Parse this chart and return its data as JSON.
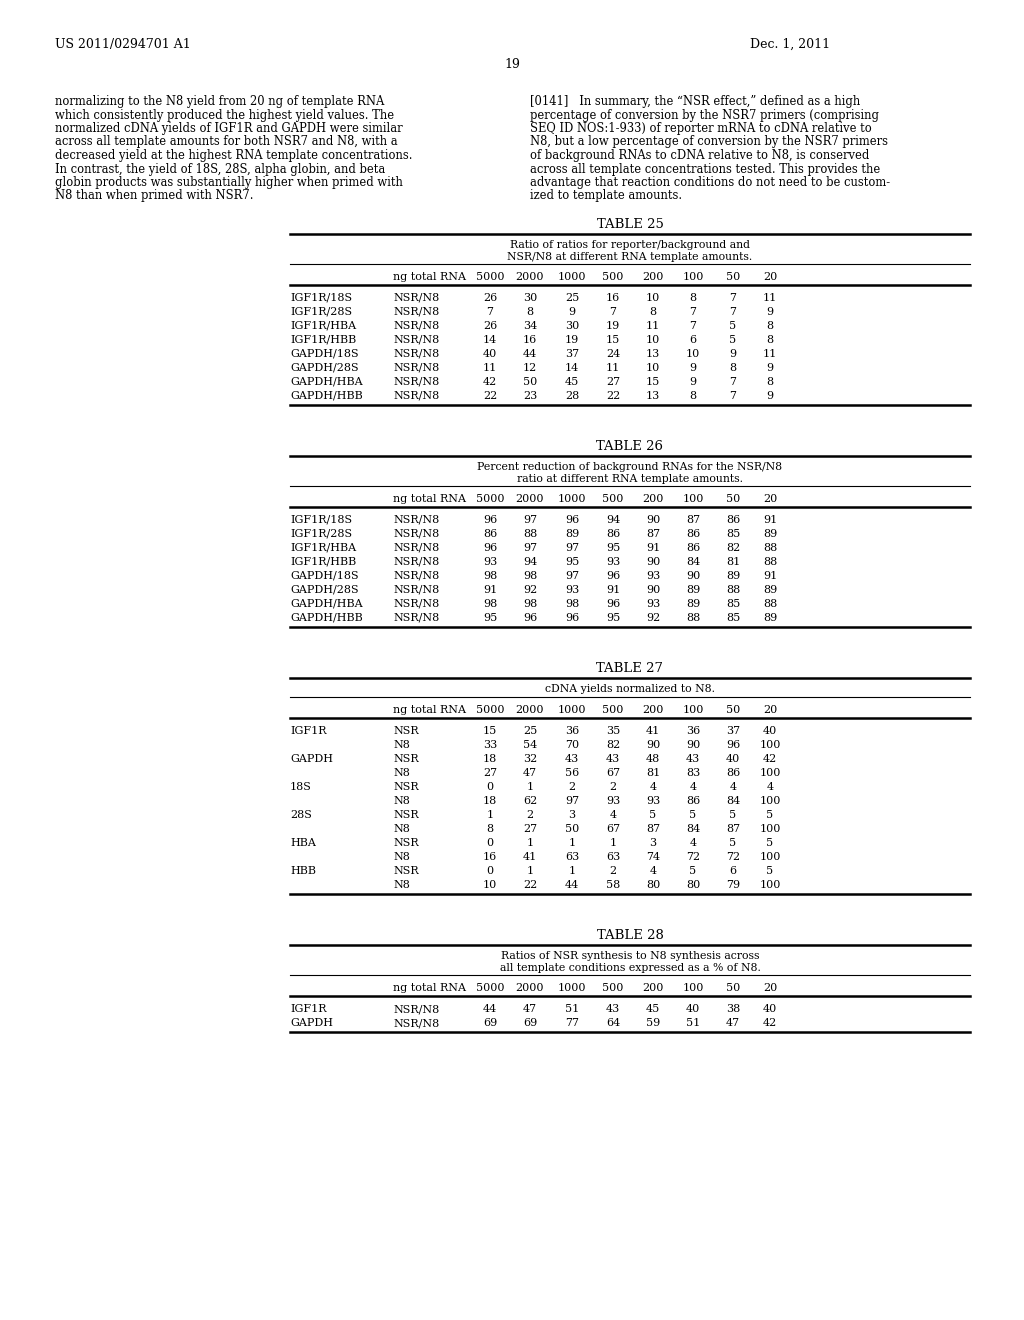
{
  "page_header_left": "US 2011/0294701 A1",
  "page_header_right": "Dec. 1, 2011",
  "page_number": "19",
  "left_text": [
    "normalizing to the N8 yield from 20 ng of template RNA",
    "which consistently produced the highest yield values. The",
    "normalized cDNA yields of IGF1R and GAPDH were similar",
    "across all template amounts for both NSR7 and N8, with a",
    "decreased yield at the highest RNA template concentrations.",
    "In contrast, the yield of 18S, 28S, alpha globin, and beta",
    "globin products was substantially higher when primed with",
    "N8 than when primed with NSR7."
  ],
  "right_text": [
    "[0141]   In summary, the “NSR effect,” defined as a high",
    "percentage of conversion by the NSR7 primers (comprising",
    "SEQ ID NOS:1-933) of reporter mRNA to cDNA relative to",
    "N8, but a low percentage of conversion by the NSR7 primers",
    "of background RNAs to cDNA relative to N8, is conserved",
    "across all template concentrations tested. This provides the",
    "advantage that reaction conditions do not need to be custom-",
    "ized to template amounts."
  ],
  "table25": {
    "title": "TABLE 25",
    "subtitle1": "Ratio of ratios for reporter/background and",
    "subtitle2": "NSR/N8 at different RNA template amounts.",
    "col_header": [
      "ng total RNA",
      "5000",
      "2000",
      "1000",
      "500",
      "200",
      "100",
      "50",
      "20"
    ],
    "rows": [
      [
        "IGF1R/18S",
        "NSR/N8",
        "26",
        "30",
        "25",
        "16",
        "10",
        "8",
        "7",
        "11"
      ],
      [
        "IGF1R/28S",
        "NSR/N8",
        "7",
        "8",
        "9",
        "7",
        "8",
        "7",
        "7",
        "9"
      ],
      [
        "IGF1R/HBA",
        "NSR/N8",
        "26",
        "34",
        "30",
        "19",
        "11",
        "7",
        "5",
        "8"
      ],
      [
        "IGF1R/HBB",
        "NSR/N8",
        "14",
        "16",
        "19",
        "15",
        "10",
        "6",
        "5",
        "8"
      ],
      [
        "GAPDH/18S",
        "NSR/N8",
        "40",
        "44",
        "37",
        "24",
        "13",
        "10",
        "9",
        "11"
      ],
      [
        "GAPDH/28S",
        "NSR/N8",
        "11",
        "12",
        "14",
        "11",
        "10",
        "9",
        "8",
        "9"
      ],
      [
        "GAPDH/HBA",
        "NSR/N8",
        "42",
        "50",
        "45",
        "27",
        "15",
        "9",
        "7",
        "8"
      ],
      [
        "GAPDH/HBB",
        "NSR/N8",
        "22",
        "23",
        "28",
        "22",
        "13",
        "8",
        "7",
        "9"
      ]
    ]
  },
  "table26": {
    "title": "TABLE 26",
    "subtitle1": "Percent reduction of background RNAs for the NSR/N8",
    "subtitle2": "ratio at different RNA template amounts.",
    "col_header": [
      "ng total RNA",
      "5000",
      "2000",
      "1000",
      "500",
      "200",
      "100",
      "50",
      "20"
    ],
    "rows": [
      [
        "IGF1R/18S",
        "NSR/N8",
        "96",
        "97",
        "96",
        "94",
        "90",
        "87",
        "86",
        "91"
      ],
      [
        "IGF1R/28S",
        "NSR/N8",
        "86",
        "88",
        "89",
        "86",
        "87",
        "86",
        "85",
        "89"
      ],
      [
        "IGF1R/HBA",
        "NSR/N8",
        "96",
        "97",
        "97",
        "95",
        "91",
        "86",
        "82",
        "88"
      ],
      [
        "IGF1R/HBB",
        "NSR/N8",
        "93",
        "94",
        "95",
        "93",
        "90",
        "84",
        "81",
        "88"
      ],
      [
        "GAPDH/18S",
        "NSR/N8",
        "98",
        "98",
        "97",
        "96",
        "93",
        "90",
        "89",
        "91"
      ],
      [
        "GAPDH/28S",
        "NSR/N8",
        "91",
        "92",
        "93",
        "91",
        "90",
        "89",
        "88",
        "89"
      ],
      [
        "GAPDH/HBA",
        "NSR/N8",
        "98",
        "98",
        "98",
        "96",
        "93",
        "89",
        "85",
        "88"
      ],
      [
        "GAPDH/HBB",
        "NSR/N8",
        "95",
        "96",
        "96",
        "95",
        "92",
        "88",
        "85",
        "89"
      ]
    ]
  },
  "table27": {
    "title": "TABLE 27",
    "subtitle1": "cDNA yields normalized to N8.",
    "col_header": [
      "ng total RNA",
      "5000",
      "2000",
      "1000",
      "500",
      "200",
      "100",
      "50",
      "20"
    ],
    "rows": [
      [
        "IGF1R",
        "NSR",
        "15",
        "25",
        "36",
        "35",
        "41",
        "36",
        "37",
        "40"
      ],
      [
        "",
        "N8",
        "33",
        "54",
        "70",
        "82",
        "90",
        "90",
        "96",
        "100"
      ],
      [
        "GAPDH",
        "NSR",
        "18",
        "32",
        "43",
        "43",
        "48",
        "43",
        "40",
        "42"
      ],
      [
        "",
        "N8",
        "27",
        "47",
        "56",
        "67",
        "81",
        "83",
        "86",
        "100"
      ],
      [
        "18S",
        "NSR",
        "0",
        "1",
        "2",
        "2",
        "4",
        "4",
        "4",
        "4"
      ],
      [
        "",
        "N8",
        "18",
        "62",
        "97",
        "93",
        "93",
        "86",
        "84",
        "100"
      ],
      [
        "28S",
        "NSR",
        "1",
        "2",
        "3",
        "4",
        "5",
        "5",
        "5",
        "5"
      ],
      [
        "",
        "N8",
        "8",
        "27",
        "50",
        "67",
        "87",
        "84",
        "87",
        "100"
      ],
      [
        "HBA",
        "NSR",
        "0",
        "1",
        "1",
        "1",
        "3",
        "4",
        "5",
        "5"
      ],
      [
        "",
        "N8",
        "16",
        "41",
        "63",
        "63",
        "74",
        "72",
        "72",
        "100"
      ],
      [
        "HBB",
        "NSR",
        "0",
        "1",
        "1",
        "2",
        "4",
        "5",
        "6",
        "5"
      ],
      [
        "",
        "N8",
        "10",
        "22",
        "44",
        "58",
        "80",
        "80",
        "79",
        "100"
      ]
    ]
  },
  "table28": {
    "title": "TABLE 28",
    "subtitle1": "Ratios of NSR synthesis to N8 synthesis across",
    "subtitle2": "all template conditions expressed as a % of N8.",
    "col_header": [
      "ng total RNA",
      "5000",
      "2000",
      "1000",
      "500",
      "200",
      "100",
      "50",
      "20"
    ],
    "rows": [
      [
        "IGF1R",
        "NSR/N8",
        "44",
        "47",
        "51",
        "43",
        "45",
        "40",
        "38",
        "40"
      ],
      [
        "GAPDH",
        "NSR/N8",
        "69",
        "69",
        "77",
        "64",
        "59",
        "51",
        "47",
        "42"
      ]
    ]
  }
}
